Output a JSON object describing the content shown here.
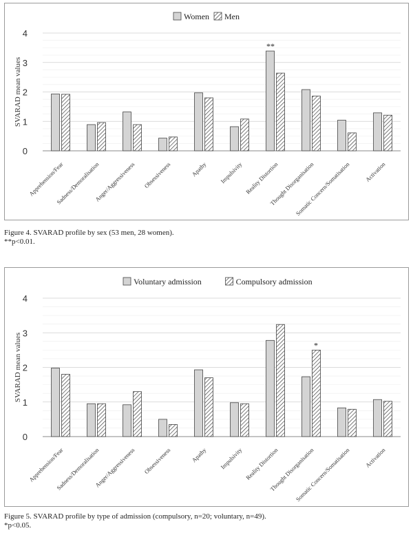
{
  "chart_data": [
    {
      "type": "bar",
      "title": "",
      "xlabel": "",
      "ylabel": "SVARAD mean values",
      "ylim": [
        0,
        4
      ],
      "yticks": [
        0,
        1,
        2,
        3,
        4
      ],
      "grid": true,
      "legend_position": "top-center",
      "categories": [
        "Apprehension/Fear",
        "Sadness/Demoralisation",
        "Anger/Aggressiveness",
        "Obsessiveness",
        "Apathy",
        "Impulsivity",
        "Reality Distortion",
        "Thought Disorganisation",
        "Somatic Concern/Somatisation",
        "Activation"
      ],
      "series": [
        {
          "name": "Women",
          "pattern": "solid",
          "color": "#d4d4d4",
          "values": [
            1.93,
            0.89,
            1.32,
            0.43,
            1.97,
            0.82,
            3.39,
            2.08,
            1.04,
            1.29
          ]
        },
        {
          "name": "Men",
          "pattern": "hatched",
          "color": "#ffffff",
          "values": [
            1.92,
            0.96,
            0.89,
            0.47,
            1.8,
            1.08,
            2.64,
            1.86,
            0.61,
            1.21
          ]
        }
      ],
      "annotations": [
        {
          "category": "Reality Distortion",
          "text": "**"
        }
      ]
    },
    {
      "type": "bar",
      "title": "",
      "xlabel": "",
      "ylabel": "SVARAD mean values",
      "ylim": [
        0,
        4
      ],
      "yticks": [
        0,
        1,
        2,
        3,
        4
      ],
      "grid": true,
      "legend_position": "top-center",
      "categories": [
        "Apprehension/Fear",
        "Sadness/Demoralisation",
        "Anger/Aggressiveness",
        "Obsessiveness",
        "Apathy",
        "Impulsivity",
        "Reality Distortion",
        "Thought Disorganisation",
        "Somatic Concern/Somatisation",
        "Activation"
      ],
      "series": [
        {
          "name": "Voluntary admission",
          "pattern": "solid",
          "color": "#d4d4d4",
          "values": [
            1.98,
            0.95,
            0.92,
            0.5,
            1.93,
            0.98,
            2.78,
            1.73,
            0.83,
            1.07
          ]
        },
        {
          "name": "Compulsory admission",
          "pattern": "hatched",
          "color": "#ffffff",
          "values": [
            1.8,
            0.95,
            1.3,
            0.35,
            1.7,
            0.95,
            3.24,
            2.5,
            0.79,
            1.02
          ]
        }
      ],
      "annotations": [
        {
          "category": "Thought Disorganisation",
          "text": "*"
        }
      ]
    }
  ],
  "captions": [
    {
      "line1": "Figure 4. SVARAD profile by sex (53 men, 28 women).",
      "line2": "**p<0.01."
    },
    {
      "line1": "Figure 5. SVARAD profile by type of admission (compulsory, n=20; voluntary, n=49).",
      "line2": "*p<0.05."
    }
  ]
}
